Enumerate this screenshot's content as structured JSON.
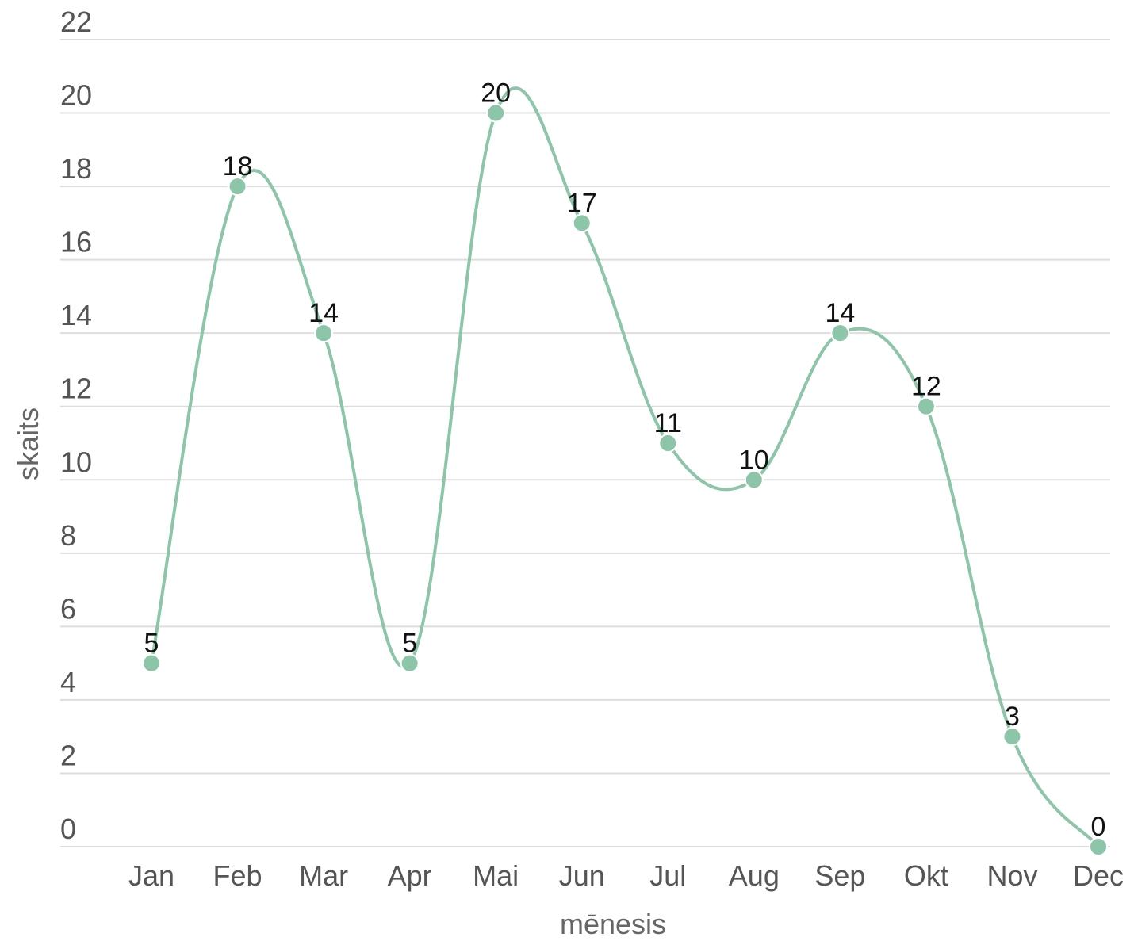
{
  "chart_data": {
    "type": "line",
    "curve": "smooth",
    "categories": [
      "Jan",
      "Feb",
      "Mar",
      "Apr",
      "Mai",
      "Jun",
      "Jul",
      "Aug",
      "Sep",
      "Okt",
      "Nov",
      "Dec"
    ],
    "series": [
      {
        "values": [
          5,
          18,
          14,
          5,
          20,
          17,
          11,
          10,
          14,
          12,
          3,
          0
        ]
      }
    ],
    "xlabel": "mēnesis",
    "ylabel": "skaits",
    "ylim": [
      0,
      22
    ],
    "yticks": [
      0,
      2,
      4,
      6,
      8,
      10,
      12,
      14,
      16,
      18,
      20,
      22
    ],
    "grid": true,
    "data_labels": true,
    "colors": {
      "line": "#8dc5a8",
      "marker": "#8dc5a8",
      "grid": "#dddddd"
    }
  }
}
